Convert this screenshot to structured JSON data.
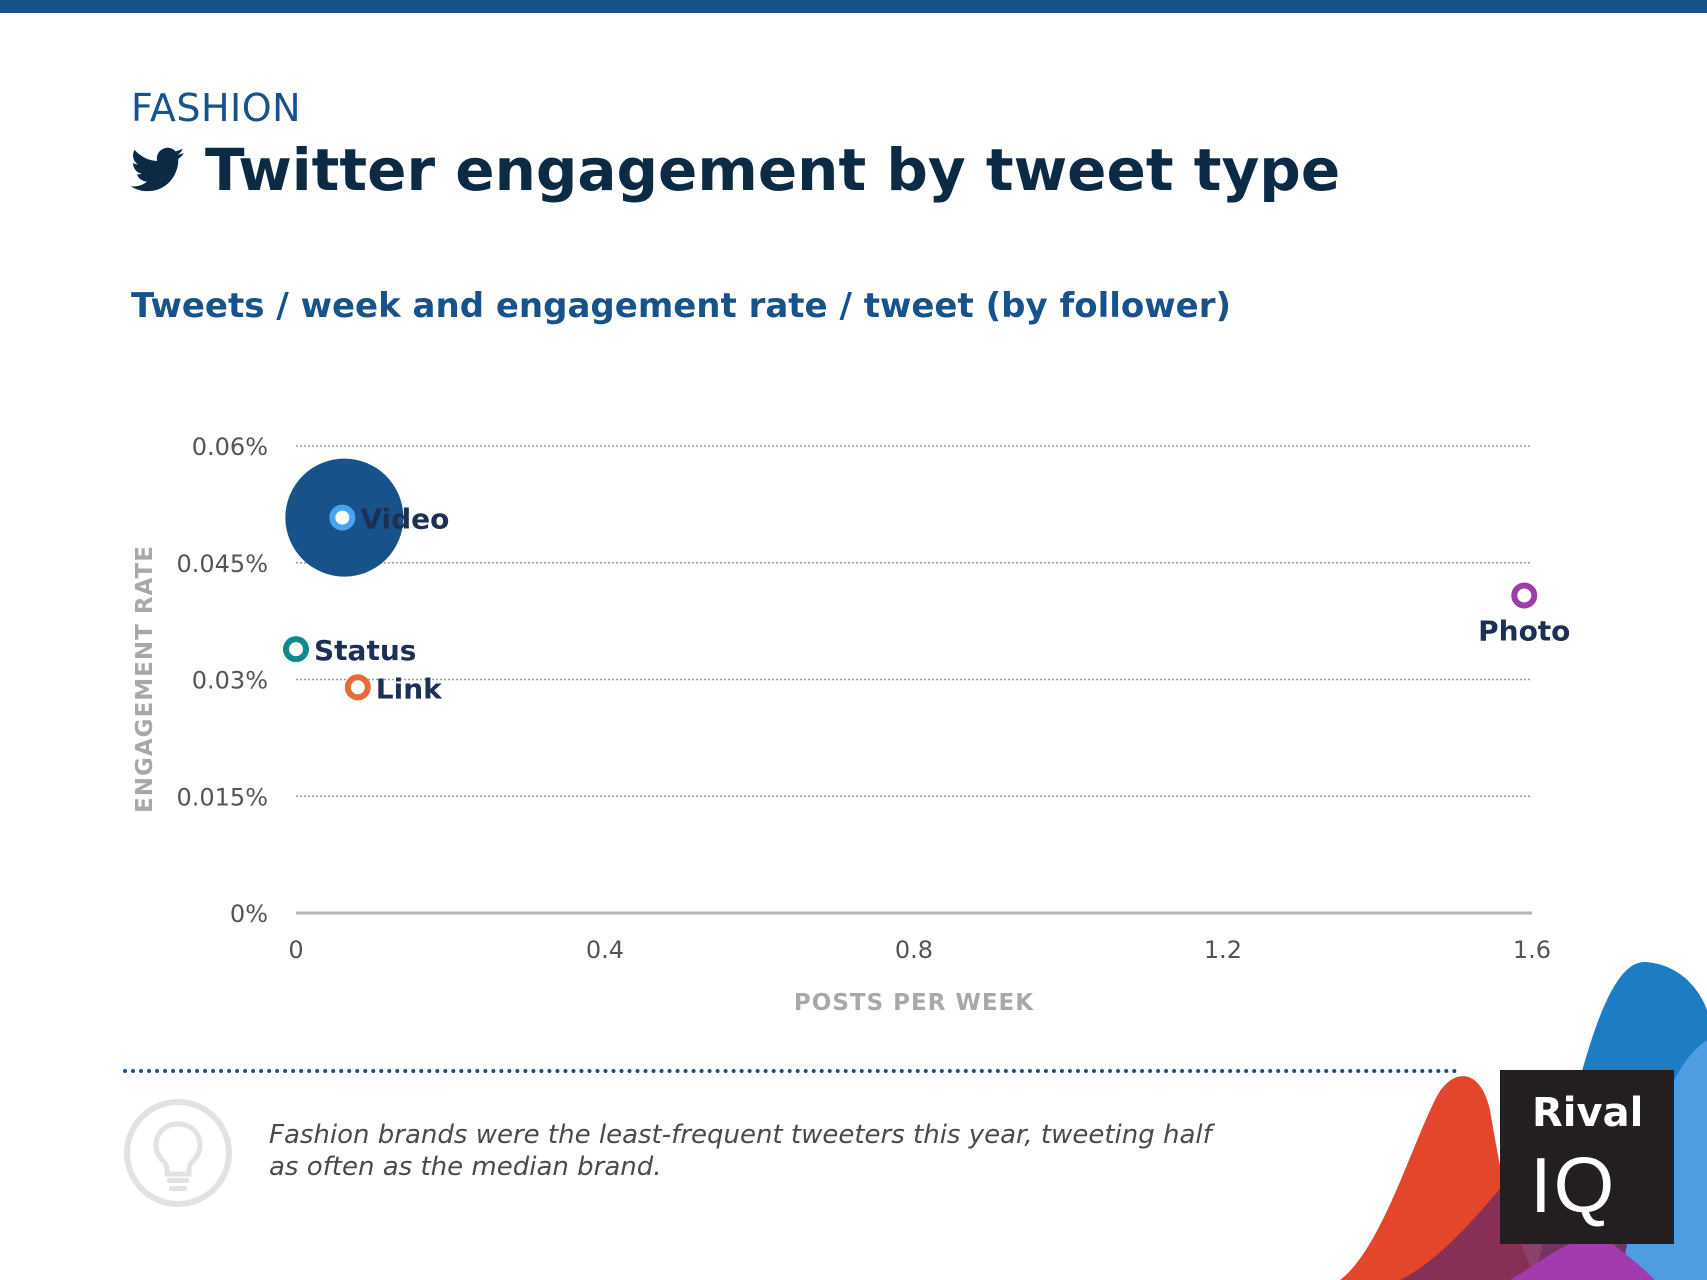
{
  "header": {
    "eyebrow": "FASHION",
    "title": "Twitter engagement by tweet type",
    "subtitle": "Tweets / week and engagement rate / tweet (by follower)"
  },
  "colors": {
    "brand": "#17528a",
    "title": "#0d2a44",
    "video_bubble": "#17528a",
    "video_marker": "#4aa3f0",
    "status_marker": "#0e8a8f",
    "link_marker": "#ea6a3a",
    "photo_marker": "#9b3ea8"
  },
  "chart_data": {
    "type": "scatter",
    "xlabel": "POSTS PER WEEK",
    "ylabel": "ENGAGEMENT RATE",
    "xlim": [
      0,
      1.6
    ],
    "ylim": [
      0,
      0.06
    ],
    "xticks": [
      "0",
      "0.4",
      "0.8",
      "1.2",
      "1.6"
    ],
    "yticks": [
      "0%",
      "0.015%",
      "0.03%",
      "0.045%",
      "0.06%"
    ],
    "grid": true,
    "series": [
      {
        "name": "Video",
        "x": 0.06,
        "y": 0.0508,
        "color": "#4aa3f0",
        "highlight": true
      },
      {
        "name": "Status",
        "x": 0.0,
        "y": 0.0339,
        "color": "#0e8a8f"
      },
      {
        "name": "Link",
        "x": 0.08,
        "y": 0.029,
        "color": "#ea6a3a"
      },
      {
        "name": "Photo",
        "x": 1.59,
        "y": 0.0408,
        "color": "#9b3ea8"
      }
    ]
  },
  "footer": {
    "insight": "Fashion brands were the least-frequent tweeters this year, tweeting half as often as the median brand.",
    "logo_line1": "Rival",
    "logo_line2": "IQ"
  }
}
